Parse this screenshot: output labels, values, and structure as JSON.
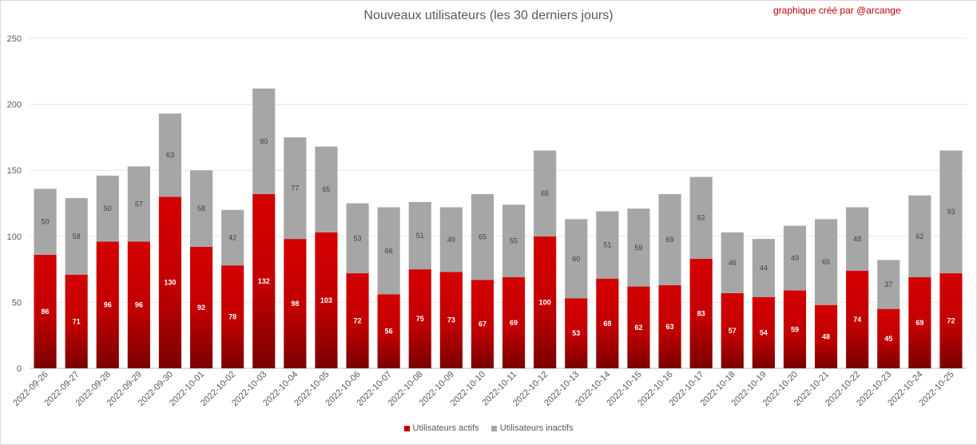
{
  "chart_data": {
    "type": "bar",
    "stacked": true,
    "title": "Nouveaux utilisateurs  (les 30 derniers  jours)",
    "credit": "graphique créé par @arcange",
    "categories": [
      "2022-09-26",
      "2022-09-27",
      "2022-09-28",
      "2022-09-29",
      "2022-09-30",
      "2022-10-01",
      "2022-10-02",
      "2022-10-03",
      "2022-10-04",
      "2022-10-05",
      "2022-10-06",
      "2022-10-07",
      "2022-10-08",
      "2022-10-09",
      "2022-10-10",
      "2022-10-11",
      "2022-10-12",
      "2022-10-13",
      "2022-10-14",
      "2022-10-15",
      "2022-10-16",
      "2022-10-17",
      "2022-10-18",
      "2022-10-19",
      "2022-10-20",
      "2022-10-21",
      "2022-10-22",
      "2022-10-23",
      "2022-10-24",
      "2022-10-25"
    ],
    "series": [
      {
        "name": "Utilisateurs actifs",
        "color": "#c00000",
        "values": [
          86,
          71,
          96,
          96,
          130,
          92,
          78,
          132,
          98,
          103,
          72,
          56,
          75,
          73,
          67,
          69,
          100,
          53,
          68,
          62,
          63,
          83,
          57,
          54,
          59,
          48,
          74,
          45,
          69,
          72
        ]
      },
      {
        "name": "Utilisateurs inactifs",
        "color": "#a6a6a6",
        "values": [
          50,
          58,
          50,
          57,
          63,
          58,
          42,
          80,
          77,
          65,
          53,
          66,
          51,
          49,
          65,
          55,
          65,
          60,
          51,
          59,
          69,
          62,
          46,
          44,
          49,
          65,
          48,
          37,
          62,
          93
        ]
      }
    ],
    "yticks": [
      0,
      50,
      100,
      150,
      200,
      250
    ],
    "ylim": [
      0,
      250
    ],
    "grid": true,
    "legend_position": "bottom"
  }
}
